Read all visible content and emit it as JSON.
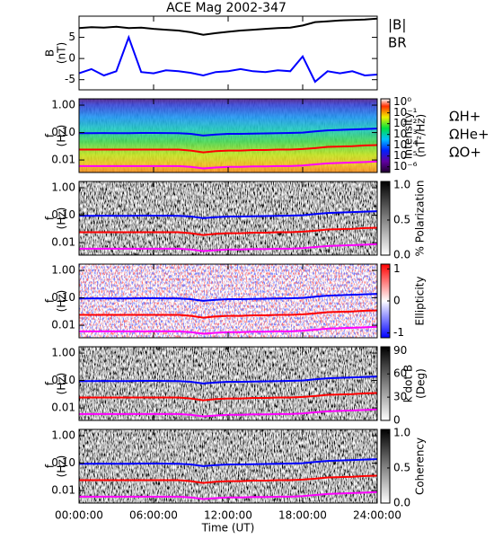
{
  "chart_data": [
    {
      "type": "line",
      "title": "ACE Mag 2002-347",
      "y_label": [
        "B",
        "(nT)"
      ],
      "ylim": [
        -7.4,
        10
      ],
      "yticks": [
        -5,
        0,
        5
      ],
      "x": [
        0,
        1,
        2,
        3,
        4,
        5,
        6,
        7,
        8,
        9,
        10,
        11,
        12,
        13,
        14,
        15,
        16,
        17,
        18,
        19,
        20,
        21,
        22,
        23,
        24
      ],
      "series": [
        {
          "name": "|B|",
          "color": "#000000",
          "values": [
            7.2,
            7.4,
            7.3,
            7.5,
            7.2,
            7.3,
            7.0,
            6.8,
            6.6,
            6.2,
            5.6,
            6.0,
            6.3,
            6.6,
            6.8,
            7.0,
            7.2,
            7.3,
            7.8,
            8.6,
            8.8,
            9.0,
            9.1,
            9.2,
            9.4
          ]
        },
        {
          "name": "BR",
          "color": "#0000ff",
          "values": [
            -3.5,
            -2.5,
            -4,
            -3,
            5,
            -3.2,
            -3.5,
            -2.8,
            -3,
            -3.4,
            -4,
            -3.2,
            -3,
            -2.5,
            -3,
            -3.2,
            -2.8,
            -3,
            0.5,
            -5.5,
            -3,
            -3.5,
            -3,
            -4,
            -3.8
          ]
        }
      ]
    },
    {
      "type": "spectrogram",
      "colormap": "rainbow",
      "y_label": [
        "f",
        "(Hz)"
      ],
      "log_y": true,
      "ylim": [
        0.0035,
        1.7
      ],
      "yticks": [
        {
          "value": 1,
          "label": "1.00"
        },
        {
          "value": 0.1,
          "label": "0.10"
        },
        {
          "value": 0.01,
          "label": "0.01"
        }
      ],
      "colorbar": {
        "label": [
          "Intensity",
          "(nT²/Hz)"
        ],
        "log": true,
        "lim": [
          3e-07,
          2
        ],
        "ticks": [
          {
            "value": 1,
            "label": "10⁰"
          },
          {
            "value": 0.1,
            "label": "10⁻¹"
          },
          {
            "value": 0.01,
            "label": "10⁻²"
          },
          {
            "value": 0.001,
            "label": "10⁻³"
          },
          {
            "value": 0.0001,
            "label": "10⁻⁴"
          },
          {
            "value": 1e-05,
            "label": "10⁻⁵"
          },
          {
            "value": 1e-06,
            "label": "10⁻⁶"
          }
        ]
      },
      "x": [
        0,
        1,
        2,
        3,
        4,
        5,
        6,
        7,
        8,
        9,
        10,
        11,
        12,
        13,
        14,
        15,
        16,
        17,
        18,
        19,
        20,
        21,
        22,
        23,
        24
      ],
      "series": [
        {
          "name": "ΩH+",
          "color": "#0000ff",
          "values": [
            0.095,
            0.095,
            0.096,
            0.095,
            0.095,
            0.097,
            0.097,
            0.096,
            0.095,
            0.09,
            0.078,
            0.085,
            0.09,
            0.09,
            0.092,
            0.093,
            0.095,
            0.097,
            0.1,
            0.11,
            0.12,
            0.125,
            0.13,
            0.135,
            0.14
          ]
        },
        {
          "name": "ΩHe+",
          "color": "#ff0000",
          "values": [
            0.024,
            0.024,
            0.024,
            0.024,
            0.024,
            0.024,
            0.024,
            0.024,
            0.024,
            0.022,
            0.019,
            0.021,
            0.022,
            0.022,
            0.023,
            0.023,
            0.024,
            0.024,
            0.025,
            0.027,
            0.03,
            0.031,
            0.032,
            0.034,
            0.035
          ]
        },
        {
          "name": "ΩO+",
          "color": "#ff00ff",
          "values": [
            0.006,
            0.006,
            0.006,
            0.006,
            0.006,
            0.006,
            0.006,
            0.006,
            0.006,
            0.0056,
            0.0049,
            0.0053,
            0.0056,
            0.0056,
            0.0058,
            0.0058,
            0.006,
            0.006,
            0.0063,
            0.0069,
            0.0075,
            0.0078,
            0.0081,
            0.0084,
            0.0088
          ]
        }
      ]
    },
    {
      "type": "spectrogram",
      "colormap": "gray",
      "y_label": [
        "f",
        "(Hz)"
      ],
      "log_y": true,
      "ylim": [
        0.0035,
        1.7
      ],
      "yticks": [
        {
          "value": 1,
          "label": "1.00"
        },
        {
          "value": 0.1,
          "label": "0.10"
        },
        {
          "value": 0.01,
          "label": "0.01"
        }
      ],
      "colorbar": {
        "label": [
          "% Polarization"
        ],
        "log": false,
        "lim": [
          0,
          1.05
        ],
        "ticks": [
          {
            "value": 1,
            "label": "1.0"
          },
          0.5,
          {
            "value": 0,
            "label": "0.0"
          }
        ]
      }
    },
    {
      "type": "spectrogram",
      "colormap": "bwr",
      "y_label": [
        "f",
        "(Hz)"
      ],
      "log_y": true,
      "ylim": [
        0.0035,
        1.7
      ],
      "yticks": [
        {
          "value": 1,
          "label": "1.00"
        },
        {
          "value": 0.1,
          "label": "0.10"
        },
        {
          "value": 0.01,
          "label": "0.01"
        }
      ],
      "colorbar": {
        "label": [
          "Ellipticity"
        ],
        "log": false,
        "lim": [
          -1.15,
          1.15
        ],
        "ticks": [
          1,
          0,
          -1
        ]
      }
    },
    {
      "type": "spectrogram",
      "colormap": "gray",
      "y_label": [
        "f",
        "(Hz)"
      ],
      "log_y": true,
      "ylim": [
        0.0035,
        1.7
      ],
      "yticks": [
        {
          "value": 1,
          "label": "1.00"
        },
        {
          "value": 0.1,
          "label": "0.10"
        },
        {
          "value": 0.01,
          "label": "0.01"
        }
      ],
      "colorbar": {
        "label": [
          "k dot B",
          "(Deg)"
        ],
        "log": false,
        "lim": [
          0,
          95
        ],
        "ticks": [
          90,
          60,
          30,
          0
        ]
      }
    },
    {
      "type": "spectrogram",
      "colormap": "gray",
      "y_label": [
        "f",
        "(Hz)"
      ],
      "log_y": true,
      "ylim": [
        0.0035,
        1.7
      ],
      "yticks": [
        {
          "value": 1,
          "label": "1.00"
        },
        {
          "value": 0.1,
          "label": "0.10"
        },
        {
          "value": 0.01,
          "label": "0.01"
        }
      ],
      "colorbar": {
        "label": [
          "Coherency"
        ],
        "log": false,
        "lim": [
          0,
          1.05
        ],
        "ticks": [
          {
            "value": 1,
            "label": "1.0"
          },
          0.5,
          {
            "value": 0,
            "label": "0.0"
          }
        ]
      },
      "x_label": "Time (UT)",
      "xlim": [
        0,
        24
      ],
      "xticks": [
        {
          "value": 0,
          "label": "00:00:00"
        },
        {
          "value": 6,
          "label": "06:00:00"
        },
        {
          "value": 12,
          "label": "12:00:00"
        },
        {
          "value": 18,
          "label": "18:00:00"
        },
        {
          "value": 24,
          "label": "24:00:00"
        }
      ]
    }
  ]
}
